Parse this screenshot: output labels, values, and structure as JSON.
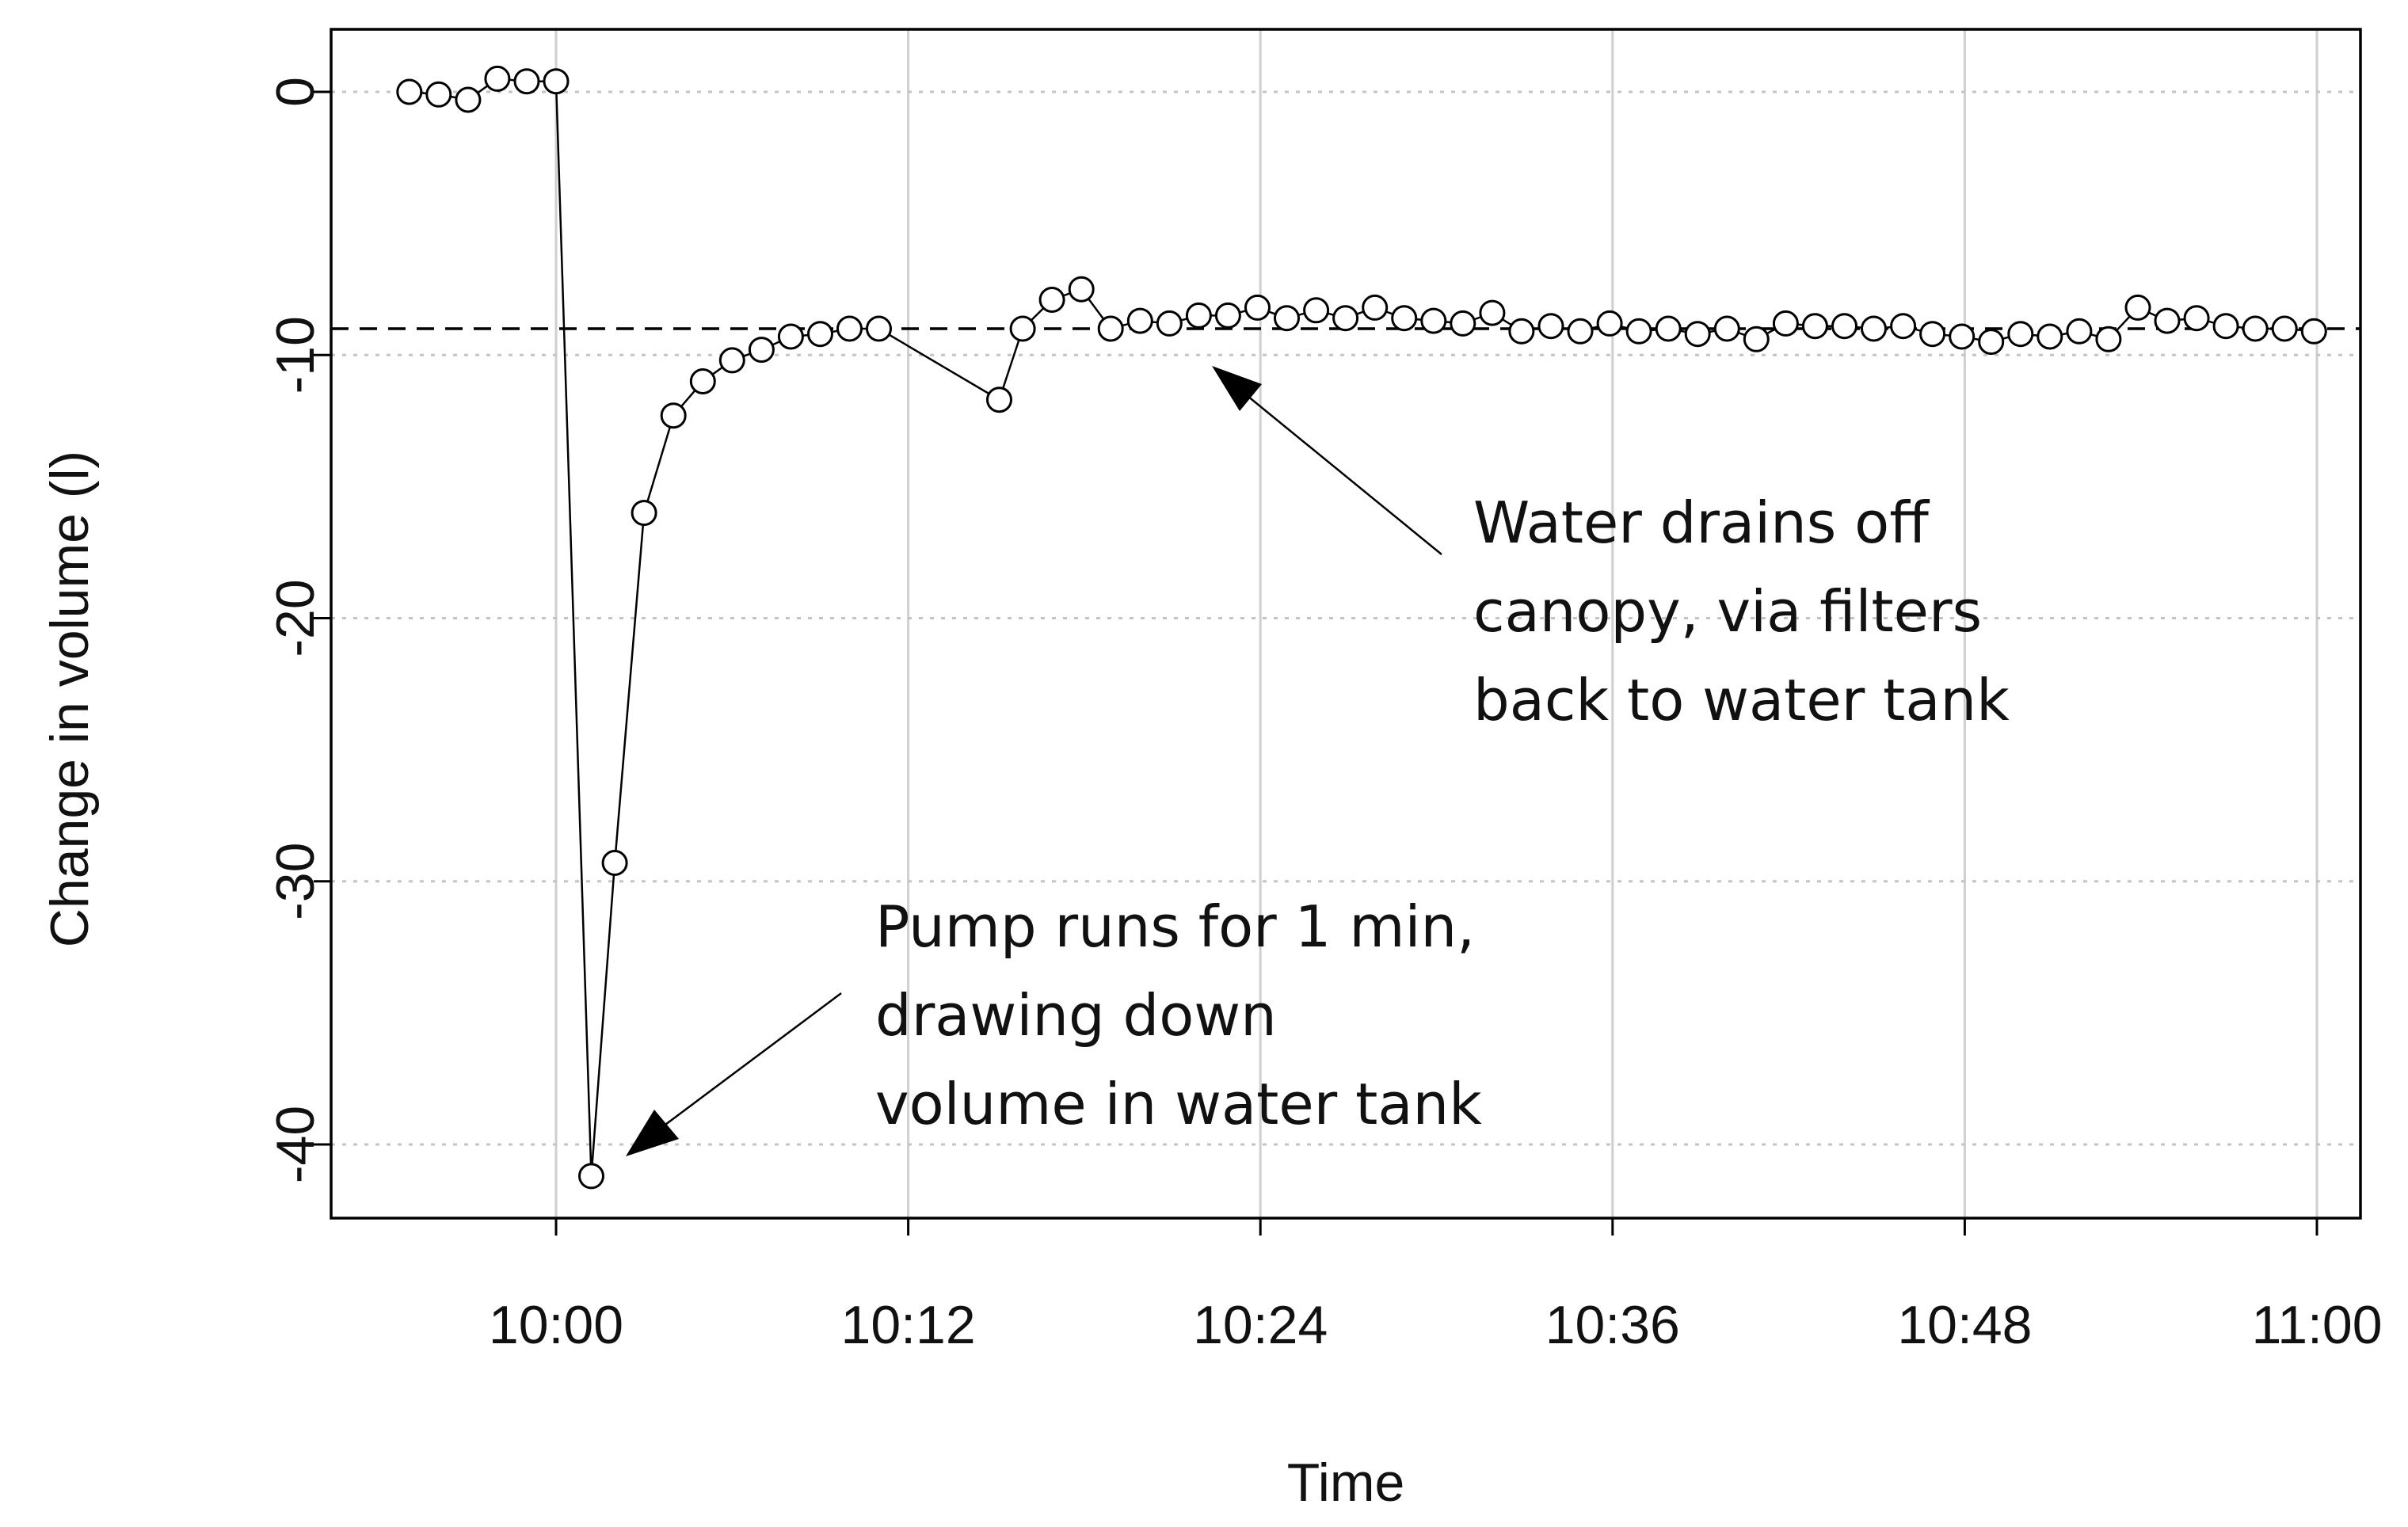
{
  "chart_data": {
    "type": "line",
    "title": "",
    "xlabel": "Time",
    "ylabel": "Change in volume (l)",
    "x_unit": "minutes after 9:50",
    "xlim": [
      0,
      70
    ],
    "ylim": [
      -44,
      2.5
    ],
    "x_ticks": [
      {
        "value": 10,
        "label": "10:00"
      },
      {
        "value": 22,
        "label": "10:12"
      },
      {
        "value": 34,
        "label": "10:24"
      },
      {
        "value": 46,
        "label": "10:36"
      },
      {
        "value": 58,
        "label": "10:48"
      },
      {
        "value": 70,
        "label": "11:00"
      }
    ],
    "y_ticks": [
      {
        "value": 0,
        "label": "0"
      },
      {
        "value": -10,
        "label": "-10"
      },
      {
        "value": -20,
        "label": "-20"
      },
      {
        "value": -30,
        "label": "-30"
      },
      {
        "value": -40,
        "label": "-40"
      }
    ],
    "grid": {
      "vertical": "solid light gray at x ticks",
      "horizontal": "dotted light gray at y ticks"
    },
    "reference_line": {
      "y": -9,
      "style": "dashed"
    },
    "series": [
      {
        "name": "Change in volume",
        "marker": "open circle",
        "x": [
          5,
          6,
          7,
          8,
          9,
          10,
          11.2,
          12,
          13,
          14,
          15,
          16,
          17,
          18,
          19,
          20,
          21,
          25.1,
          25.9,
          26.9,
          27.9,
          28.9,
          29.9,
          30.9,
          31.9,
          32.9,
          33.9,
          34.9,
          35.9,
          36.9,
          37.9,
          38.9,
          39.9,
          40.9,
          41.9,
          42.9,
          43.9,
          44.9,
          45.9,
          46.9,
          47.9,
          48.9,
          49.9,
          50.9,
          51.9,
          52.9,
          53.9,
          54.9,
          55.9,
          56.9,
          57.9,
          58.9,
          59.9,
          60.9,
          61.9,
          62.9,
          63.9,
          64.9,
          65.9,
          66.9,
          67.9,
          68.9,
          69.9
        ],
        "y": [
          0,
          -0.1,
          -0.3,
          0.5,
          0.4,
          0.4,
          -41.2,
          -29.3,
          -16.0,
          -12.3,
          -11.0,
          -10.2,
          -9.8,
          -9.3,
          -9.2,
          -9.0,
          -9.0,
          -11.7,
          -9.0,
          -7.9,
          -7.5,
          -9.0,
          -8.7,
          -8.8,
          -8.5,
          -8.5,
          -8.2,
          -8.6,
          -8.3,
          -8.6,
          -8.2,
          -8.6,
          -8.7,
          -8.8,
          -8.4,
          -9.1,
          -8.9,
          -9.1,
          -8.8,
          -9.1,
          -9.0,
          -9.2,
          -9.0,
          -9.4,
          -8.8,
          -8.9,
          -8.9,
          -9.0,
          -8.9,
          -9.2,
          -9.3,
          -9.5,
          -9.2,
          -9.3,
          -9.1,
          -9.4,
          -8.2,
          -8.7,
          -8.6,
          -8.9,
          -9.0,
          -9.0,
          -9.1
        ]
      }
    ],
    "annotations": [
      {
        "name": "drain",
        "lines": [
          "Water drains off",
          "canopy, via filters",
          "back to water tank"
        ]
      },
      {
        "name": "pump",
        "lines": [
          "Pump runs for 1 min,",
          "drawing down",
          "volume in water tank"
        ]
      }
    ]
  }
}
